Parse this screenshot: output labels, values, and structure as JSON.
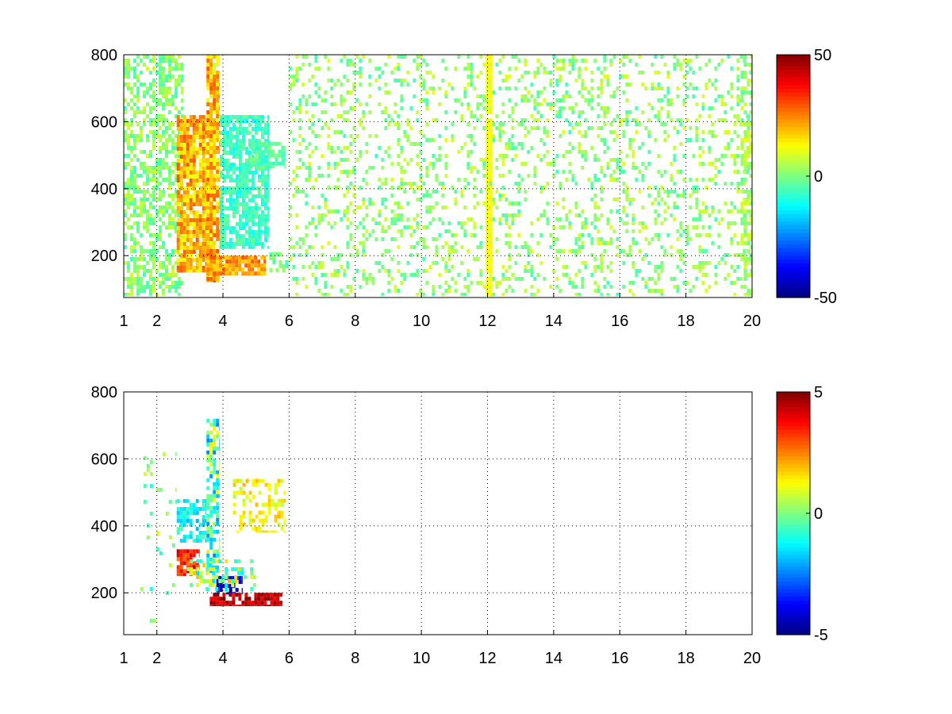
{
  "figure": {
    "background": "#ffffff"
  },
  "chart_data": [
    {
      "type": "heatmap",
      "title": "",
      "xlabel": "",
      "ylabel": "",
      "xlim": [
        1,
        20
      ],
      "ylim": [
        75,
        800
      ],
      "grid": true,
      "xticks": [
        1,
        2,
        4,
        6,
        8,
        10,
        12,
        14,
        16,
        18,
        20
      ],
      "yticks": [
        200,
        400,
        600,
        800
      ],
      "colorbar": {
        "colormap": "jet",
        "range": [
          -50,
          50
        ],
        "ticks": [
          50,
          0,
          -50
        ]
      },
      "regions": [
        {
          "x": [
            1.0,
            2.8
          ],
          "y": [
            80,
            800
          ],
          "v": [
            -6,
            8
          ],
          "density": 0.5
        },
        {
          "x": [
            2.6,
            3.7
          ],
          "y": [
            150,
            620
          ],
          "v": [
            10,
            30
          ],
          "density": 0.85
        },
        {
          "x": [
            3.5,
            3.9
          ],
          "y": [
            120,
            800
          ],
          "v": [
            8,
            30
          ],
          "density": 0.85
        },
        {
          "x": [
            3.9,
            5.4
          ],
          "y": [
            220,
            620
          ],
          "v": [
            -12,
            -2
          ],
          "density": 0.75
        },
        {
          "x": [
            3.5,
            5.3
          ],
          "y": [
            140,
            200
          ],
          "v": [
            15,
            30
          ],
          "density": 0.9
        },
        {
          "x": [
            4.8,
            5.9
          ],
          "y": [
            460,
            540
          ],
          "v": [
            -8,
            2
          ],
          "density": 0.7
        },
        {
          "x": [
            5.4,
            6.0
          ],
          "y": [
            150,
            210
          ],
          "v": [
            -6,
            4
          ],
          "density": 0.7
        },
        {
          "x": [
            6.0,
            20.0
          ],
          "y": [
            80,
            800
          ],
          "v": [
            -6,
            10
          ],
          "density": 0.22
        },
        {
          "x": [
            11.95,
            12.15
          ],
          "y": [
            80,
            800
          ],
          "v": [
            10,
            14
          ],
          "density": 0.95
        },
        {
          "x": [
            19.65,
            20.0
          ],
          "y": [
            80,
            800
          ],
          "v": [
            -4,
            10
          ],
          "density": 0.55
        }
      ]
    },
    {
      "type": "heatmap",
      "title": "",
      "xlabel": "",
      "ylabel": "",
      "xlim": [
        1,
        20
      ],
      "ylim": [
        75,
        800
      ],
      "grid": true,
      "xticks": [
        1,
        2,
        4,
        6,
        8,
        10,
        12,
        14,
        16,
        18,
        20
      ],
      "yticks": [
        200,
        400,
        600,
        800
      ],
      "colorbar": {
        "colormap": "jet",
        "range": [
          -5,
          5
        ],
        "ticks": [
          5,
          0,
          -5
        ]
      },
      "regions": [
        {
          "x": [
            2.6,
            3.5
          ],
          "y": [
            350,
            480
          ],
          "v": [
            -2,
            -0.5
          ],
          "density": 0.5
        },
        {
          "x": [
            2.6,
            3.3
          ],
          "y": [
            250,
            330
          ],
          "v": [
            2.5,
            4.5
          ],
          "density": 0.7
        },
        {
          "x": [
            3.5,
            3.9
          ],
          "y": [
            260,
            720
          ],
          "v": [
            -2.5,
            1.5
          ],
          "density": 0.55
        },
        {
          "x": [
            3.8,
            4.6
          ],
          "y": [
            195,
            250
          ],
          "v": [
            -5,
            -3
          ],
          "density": 0.75
        },
        {
          "x": [
            3.6,
            5.8
          ],
          "y": [
            160,
            200
          ],
          "v": [
            3.5,
            5
          ],
          "density": 0.85
        },
        {
          "x": [
            4.3,
            5.9
          ],
          "y": [
            380,
            540
          ],
          "v": [
            0.5,
            2
          ],
          "density": 0.45
        },
        {
          "x": [
            2.9,
            5.0
          ],
          "y": [
            200,
            300
          ],
          "v": [
            -1.5,
            2
          ],
          "density": 0.35
        },
        {
          "x": [
            1.5,
            2.6
          ],
          "y": [
            100,
            620
          ],
          "v": [
            -1,
            1
          ],
          "density": 0.04
        }
      ]
    }
  ]
}
